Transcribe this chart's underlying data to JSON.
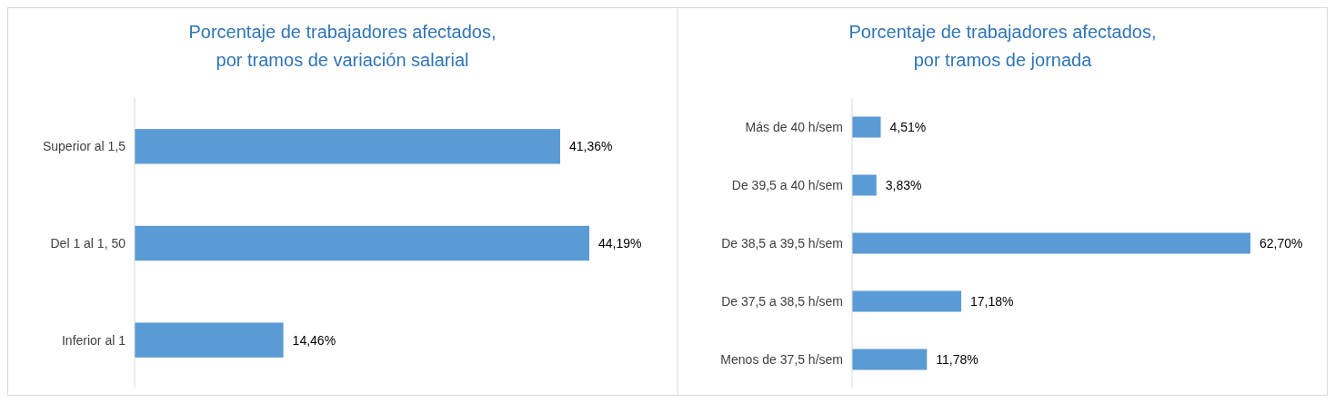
{
  "chart_data": [
    {
      "type": "bar",
      "orientation": "horizontal",
      "title": "Porcentaje de trabajadores afectados,\npor tramos de variación salarial",
      "categories": [
        "Superior al 1,5",
        "Del 1 al 1, 50",
        "Inferior al 1"
      ],
      "values": [
        41.36,
        44.19,
        14.46
      ],
      "value_labels": [
        "41,36%",
        "44,19%",
        "14,46%"
      ],
      "color": "#5b9bd5",
      "tick_labels": "y"
    },
    {
      "type": "bar",
      "orientation": "horizontal",
      "title": "Porcentaje de trabajadores afectados,\npor tramos de jornada",
      "categories": [
        "Más de 40 h/sem",
        "De 39,5 a 40 h/sem",
        "De 38,5 a 39,5 h/sem",
        "De 37,5 a 38,5 h/sem",
        "Menos de 37,5 h/sem"
      ],
      "values": [
        4.51,
        3.83,
        62.7,
        17.18,
        11.78
      ],
      "value_labels": [
        "4,51%",
        "3,83%",
        "62,70%",
        "17,18%",
        "11,78%"
      ],
      "color": "#5b9bd5",
      "tick_labels": "y"
    }
  ]
}
